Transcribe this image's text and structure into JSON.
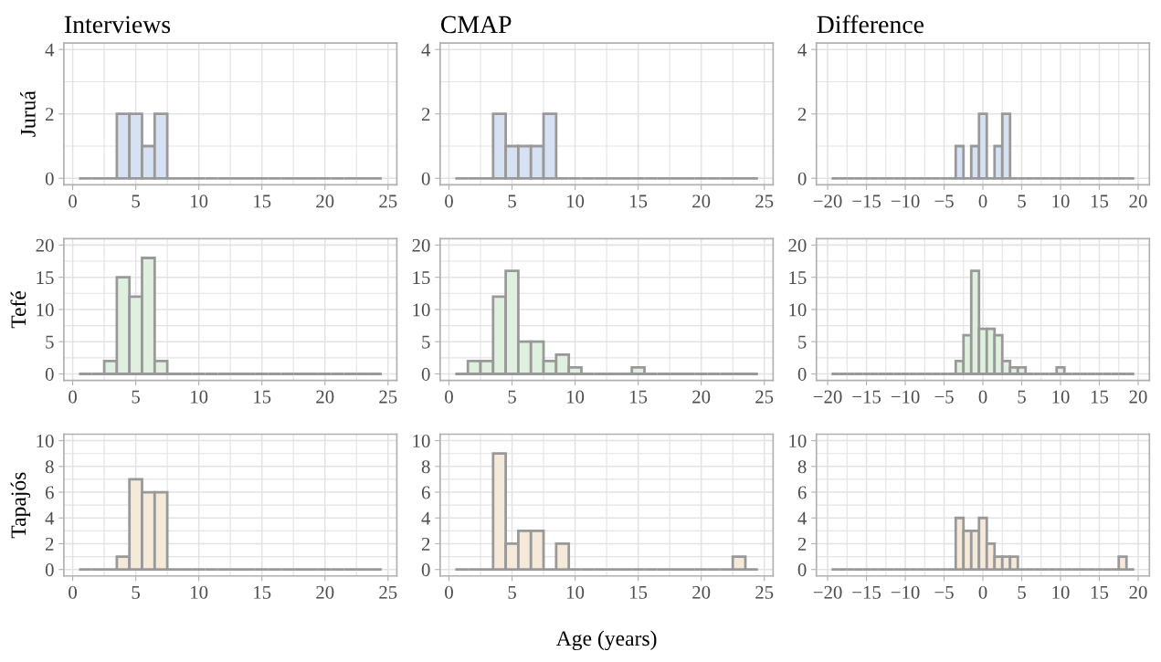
{
  "chart_data": [
    {
      "type": "histogram",
      "title": "Interviews",
      "ylabel": "Juruá",
      "colors": [
        "#999999",
        "#999999",
        "#999999",
        "#d6e2f3",
        "#d6e2f3",
        "#d6e2f3",
        "#d6e2f3",
        "#999999",
        "#999999",
        "#999999",
        "#999999",
        "#999999",
        "#999999",
        "#999999",
        "#999999",
        "#999999",
        "#999999",
        "#999999",
        "#999999",
        "#999999",
        "#999999",
        "#999999",
        "#999999",
        "#999999"
      ],
      "grid": true,
      "bins": [
        0.5,
        1.5,
        2.5,
        3.5,
        4.5,
        5.5,
        6.5,
        7.5,
        8.5,
        9.5,
        10.5,
        11.5,
        12.5,
        13.5,
        14.5,
        15.5,
        16.5,
        17.5,
        18.5,
        19.5,
        20.5,
        21.5,
        22.5,
        23.5,
        24.5
      ],
      "values": [
        0,
        0,
        0,
        2,
        2,
        1,
        2,
        0,
        0,
        0,
        0,
        0,
        0,
        0,
        0,
        0,
        0,
        0,
        0,
        0,
        0,
        0,
        0,
        0
      ],
      "xlim": [
        -0.7,
        25.7
      ],
      "xticks": [
        0,
        5,
        10,
        15,
        20,
        25
      ],
      "ylim": [
        -0.2,
        4.2
      ],
      "yticks": [
        0,
        2,
        4
      ]
    },
    {
      "type": "histogram",
      "title": "CMAP",
      "colors": [
        "#999999",
        "#999999",
        "#999999",
        "#d6e2f3",
        "#d6e2f3",
        "#d6e2f3",
        "#d6e2f3",
        "#d6e2f3",
        "#999999",
        "#999999",
        "#999999",
        "#999999",
        "#999999",
        "#999999",
        "#999999",
        "#999999",
        "#999999",
        "#999999",
        "#999999",
        "#999999",
        "#999999",
        "#999999",
        "#999999",
        "#999999"
      ],
      "grid": true,
      "bins": [
        0.5,
        1.5,
        2.5,
        3.5,
        4.5,
        5.5,
        6.5,
        7.5,
        8.5,
        9.5,
        10.5,
        11.5,
        12.5,
        13.5,
        14.5,
        15.5,
        16.5,
        17.5,
        18.5,
        19.5,
        20.5,
        21.5,
        22.5,
        23.5,
        24.5
      ],
      "values": [
        0,
        0,
        0,
        2,
        1,
        1,
        1,
        2,
        0,
        0,
        0,
        0,
        0,
        0,
        0,
        0,
        0,
        0,
        0,
        0,
        0,
        0,
        0,
        0
      ],
      "xlim": [
        -0.7,
        25.7
      ],
      "xticks": [
        0,
        5,
        10,
        15,
        20,
        25
      ],
      "ylim": [
        -0.2,
        4.2
      ],
      "yticks": [
        0,
        2,
        4
      ]
    },
    {
      "type": "histogram",
      "title": "Difference",
      "colors": [
        "#999999",
        "#999999",
        "#999999",
        "#999999",
        "#999999",
        "#999999",
        "#999999",
        "#999999",
        "#999999",
        "#999999",
        "#999999",
        "#999999",
        "#999999",
        "#999999",
        "#999999",
        "#999999",
        "#d6e2f3",
        "#999999",
        "#d6e2f3",
        "#d6e2f3",
        "#999999",
        "#d6e2f3",
        "#d6e2f3",
        "#999999",
        "#999999",
        "#999999",
        "#999999",
        "#999999",
        "#999999",
        "#999999",
        "#999999",
        "#999999",
        "#999999",
        "#999999",
        "#999999",
        "#999999",
        "#999999",
        "#999999",
        "#999999"
      ],
      "grid": true,
      "bins": [
        -19.5,
        -18.5,
        -17.5,
        -16.5,
        -15.5,
        -14.5,
        -13.5,
        -12.5,
        -11.5,
        -10.5,
        -9.5,
        -8.5,
        -7.5,
        -6.5,
        -5.5,
        -4.5,
        -3.5,
        -2.5,
        -1.5,
        -0.5,
        0.5,
        1.5,
        2.5,
        3.5,
        4.5,
        5.5,
        6.5,
        7.5,
        8.5,
        9.5,
        10.5,
        11.5,
        12.5,
        13.5,
        14.5,
        15.5,
        16.5,
        17.5,
        18.5,
        19.5
      ],
      "values": [
        0,
        0,
        0,
        0,
        0,
        0,
        0,
        0,
        0,
        0,
        0,
        0,
        0,
        0,
        0,
        0,
        1,
        0,
        1,
        2,
        0,
        1,
        2,
        0,
        0,
        0,
        0,
        0,
        0,
        0,
        0,
        0,
        0,
        0,
        0,
        0,
        0,
        0,
        0
      ],
      "xlim": [
        -21.45,
        21.45
      ],
      "xticks": [
        {
          "value": -20,
          "label": "−20"
        },
        {
          "value": -15,
          "label": "−15"
        },
        {
          "value": -10,
          "label": "−10"
        },
        {
          "value": -5,
          "label": "−5"
        },
        0,
        5,
        10,
        15,
        20
      ],
      "ylim": [
        -0.2,
        4.2
      ],
      "yticks": [
        0,
        2,
        4
      ]
    },
    {
      "type": "histogram",
      "ylabel": "Tefé",
      "colors": [
        "#999999",
        "#999999",
        "#dff0df",
        "#dff0df",
        "#dff0df",
        "#dff0df",
        "#dff0df",
        "#999999",
        "#999999",
        "#999999",
        "#999999",
        "#999999",
        "#999999",
        "#999999",
        "#999999",
        "#999999",
        "#999999",
        "#999999",
        "#999999",
        "#999999",
        "#999999",
        "#999999",
        "#999999",
        "#999999"
      ],
      "grid": true,
      "bins": [
        0.5,
        1.5,
        2.5,
        3.5,
        4.5,
        5.5,
        6.5,
        7.5,
        8.5,
        9.5,
        10.5,
        11.5,
        12.5,
        13.5,
        14.5,
        15.5,
        16.5,
        17.5,
        18.5,
        19.5,
        20.5,
        21.5,
        22.5,
        23.5,
        24.5
      ],
      "values": [
        0,
        0,
        2,
        15,
        12,
        18,
        2,
        0,
        0,
        0,
        0,
        0,
        0,
        0,
        0,
        0,
        0,
        0,
        0,
        0,
        0,
        0,
        0,
        0
      ],
      "xlim": [
        -0.7,
        25.7
      ],
      "xticks": [
        0,
        5,
        10,
        15,
        20,
        25
      ],
      "ylim": [
        -1,
        21
      ],
      "yticks": [
        0,
        5,
        10,
        15,
        20
      ]
    },
    {
      "type": "histogram",
      "colors": [
        "#999999",
        "#dff0df",
        "#dff0df",
        "#dff0df",
        "#dff0df",
        "#dff0df",
        "#dff0df",
        "#dff0df",
        "#dff0df",
        "#dff0df",
        "#999999",
        "#999999",
        "#999999",
        "#999999",
        "#dff0df",
        "#999999",
        "#999999",
        "#999999",
        "#999999",
        "#999999",
        "#999999",
        "#999999",
        "#999999",
        "#999999"
      ],
      "grid": true,
      "bins": [
        0.5,
        1.5,
        2.5,
        3.5,
        4.5,
        5.5,
        6.5,
        7.5,
        8.5,
        9.5,
        10.5,
        11.5,
        12.5,
        13.5,
        14.5,
        15.5,
        16.5,
        17.5,
        18.5,
        19.5,
        20.5,
        21.5,
        22.5,
        23.5,
        24.5
      ],
      "values": [
        0,
        2,
        2,
        12,
        16,
        5,
        5,
        2,
        3,
        1,
        0,
        0,
        0,
        0,
        1,
        0,
        0,
        0,
        0,
        0,
        0,
        0,
        0,
        0
      ],
      "xlim": [
        -0.7,
        25.7
      ],
      "xticks": [
        0,
        5,
        10,
        15,
        20,
        25
      ],
      "ylim": [
        -1,
        21
      ],
      "yticks": [
        0,
        5,
        10,
        15,
        20
      ]
    },
    {
      "type": "histogram",
      "colors": [
        "#999999",
        "#999999",
        "#999999",
        "#999999",
        "#999999",
        "#999999",
        "#999999",
        "#999999",
        "#999999",
        "#999999",
        "#999999",
        "#999999",
        "#999999",
        "#999999",
        "#999999",
        "#999999",
        "#dff0df",
        "#dff0df",
        "#dff0df",
        "#dff0df",
        "#dff0df",
        "#dff0df",
        "#dff0df",
        "#dff0df",
        "#dff0df",
        "#999999",
        "#999999",
        "#999999",
        "#999999",
        "#dff0df",
        "#999999",
        "#999999",
        "#999999",
        "#999999",
        "#999999",
        "#999999",
        "#999999",
        "#999999",
        "#999999"
      ],
      "grid": true,
      "bins": [
        -19.5,
        -18.5,
        -17.5,
        -16.5,
        -15.5,
        -14.5,
        -13.5,
        -12.5,
        -11.5,
        -10.5,
        -9.5,
        -8.5,
        -7.5,
        -6.5,
        -5.5,
        -4.5,
        -3.5,
        -2.5,
        -1.5,
        -0.5,
        0.5,
        1.5,
        2.5,
        3.5,
        4.5,
        5.5,
        6.5,
        7.5,
        8.5,
        9.5,
        10.5,
        11.5,
        12.5,
        13.5,
        14.5,
        15.5,
        16.5,
        17.5,
        18.5,
        19.5
      ],
      "values": [
        0,
        0,
        0,
        0,
        0,
        0,
        0,
        0,
        0,
        0,
        0,
        0,
        0,
        0,
        0,
        0,
        2,
        6,
        16,
        7,
        7,
        6,
        2,
        1,
        1,
        0,
        0,
        0,
        0,
        1,
        0,
        0,
        0,
        0,
        0,
        0,
        0,
        0,
        0
      ],
      "xlim": [
        -21.45,
        21.45
      ],
      "xticks": [
        {
          "value": -20,
          "label": "−20"
        },
        {
          "value": -15,
          "label": "−15"
        },
        {
          "value": -10,
          "label": "−10"
        },
        {
          "value": -5,
          "label": "−5"
        },
        0,
        5,
        10,
        15,
        20
      ],
      "ylim": [
        -1,
        21
      ],
      "yticks": [
        0,
        5,
        10,
        15,
        20
      ]
    },
    {
      "type": "histogram",
      "ylabel": "Tapajós",
      "colors": [
        "#999999",
        "#999999",
        "#999999",
        "#f5e9d9",
        "#f5e9d9",
        "#f5e9d9",
        "#f5e9d9",
        "#999999",
        "#999999",
        "#999999",
        "#999999",
        "#999999",
        "#999999",
        "#999999",
        "#999999",
        "#999999",
        "#999999",
        "#999999",
        "#999999",
        "#999999",
        "#999999",
        "#999999",
        "#999999",
        "#999999"
      ],
      "grid": true,
      "bins": [
        0.5,
        1.5,
        2.5,
        3.5,
        4.5,
        5.5,
        6.5,
        7.5,
        8.5,
        9.5,
        10.5,
        11.5,
        12.5,
        13.5,
        14.5,
        15.5,
        16.5,
        17.5,
        18.5,
        19.5,
        20.5,
        21.5,
        22.5,
        23.5,
        24.5
      ],
      "values": [
        0,
        0,
        0,
        1,
        7,
        6,
        6,
        0,
        0,
        0,
        0,
        0,
        0,
        0,
        0,
        0,
        0,
        0,
        0,
        0,
        0,
        0,
        0,
        0
      ],
      "xlim": [
        -0.7,
        25.7
      ],
      "xticks": [
        0,
        5,
        10,
        15,
        20,
        25
      ],
      "ylim": [
        -0.5,
        10.5
      ],
      "yticks": [
        0,
        2,
        4,
        6,
        8,
        10
      ]
    },
    {
      "type": "histogram",
      "xlabel": "Age (years)",
      "colors": [
        "#999999",
        "#999999",
        "#999999",
        "#f5e9d9",
        "#f5e9d9",
        "#f5e9d9",
        "#f5e9d9",
        "#999999",
        "#f5e9d9",
        "#999999",
        "#999999",
        "#999999",
        "#999999",
        "#999999",
        "#999999",
        "#999999",
        "#999999",
        "#999999",
        "#999999",
        "#999999",
        "#999999",
        "#999999",
        "#f5e9d9",
        "#999999"
      ],
      "grid": true,
      "bins": [
        0.5,
        1.5,
        2.5,
        3.5,
        4.5,
        5.5,
        6.5,
        7.5,
        8.5,
        9.5,
        10.5,
        11.5,
        12.5,
        13.5,
        14.5,
        15.5,
        16.5,
        17.5,
        18.5,
        19.5,
        20.5,
        21.5,
        22.5,
        23.5,
        24.5
      ],
      "values": [
        0,
        0,
        0,
        9,
        2,
        3,
        3,
        0,
        2,
        0,
        0,
        0,
        0,
        0,
        0,
        0,
        0,
        0,
        0,
        0,
        0,
        0,
        1,
        0
      ],
      "xlim": [
        -0.7,
        25.7
      ],
      "xticks": [
        0,
        5,
        10,
        15,
        20,
        25
      ],
      "ylim": [
        -0.5,
        10.5
      ],
      "yticks": [
        0,
        2,
        4,
        6,
        8,
        10
      ]
    },
    {
      "type": "histogram",
      "colors": [
        "#999999",
        "#999999",
        "#999999",
        "#999999",
        "#999999",
        "#999999",
        "#999999",
        "#999999",
        "#999999",
        "#999999",
        "#999999",
        "#999999",
        "#999999",
        "#999999",
        "#999999",
        "#999999",
        "#f5e9d9",
        "#f5e9d9",
        "#f5e9d9",
        "#f5e9d9",
        "#f5e9d9",
        "#f5e9d9",
        "#f5e9d9",
        "#f5e9d9",
        "#999999",
        "#999999",
        "#999999",
        "#999999",
        "#999999",
        "#999999",
        "#999999",
        "#999999",
        "#999999",
        "#999999",
        "#999999",
        "#999999",
        "#999999",
        "#f5e9d9",
        "#999999"
      ],
      "grid": true,
      "bins": [
        -19.5,
        -18.5,
        -17.5,
        -16.5,
        -15.5,
        -14.5,
        -13.5,
        -12.5,
        -11.5,
        -10.5,
        -9.5,
        -8.5,
        -7.5,
        -6.5,
        -5.5,
        -4.5,
        -3.5,
        -2.5,
        -1.5,
        -0.5,
        0.5,
        1.5,
        2.5,
        3.5,
        4.5,
        5.5,
        6.5,
        7.5,
        8.5,
        9.5,
        10.5,
        11.5,
        12.5,
        13.5,
        14.5,
        15.5,
        16.5,
        17.5,
        18.5,
        19.5
      ],
      "values": [
        0,
        0,
        0,
        0,
        0,
        0,
        0,
        0,
        0,
        0,
        0,
        0,
        0,
        0,
        0,
        0,
        4,
        3,
        3,
        4,
        2,
        1,
        1,
        1,
        0,
        0,
        0,
        0,
        0,
        0,
        0,
        0,
        0,
        0,
        0,
        0,
        0,
        1,
        0
      ],
      "xlim": [
        -21.45,
        21.45
      ],
      "xticks": [
        {
          "value": -20,
          "label": "−20"
        },
        {
          "value": -15,
          "label": "−15"
        },
        {
          "value": -10,
          "label": "−10"
        },
        {
          "value": -5,
          "label": "−5"
        },
        0,
        5,
        10,
        15,
        20
      ],
      "ylim": [
        -0.5,
        10.5
      ],
      "yticks": [
        0,
        2,
        4,
        6,
        8,
        10
      ]
    }
  ]
}
